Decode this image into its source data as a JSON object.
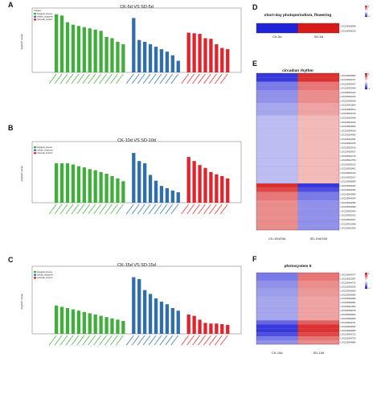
{
  "colors": {
    "biological_process": "#3fae3a",
    "cellular_component": "#2f6fad",
    "molecular_function": "#e0242c",
    "heat_low": "#2222d8",
    "heat_mid": "#ffffff",
    "heat_high": "#d81a1a"
  },
  "chart_data": [
    {
      "panel": "A",
      "type": "bar",
      "title": "CK-5d VS SD-5d",
      "ylabel": "-log10(P value)",
      "legend": {
        "title": "Category",
        "entries": [
          "biological_process",
          "cellular_component",
          "molecular_function"
        ],
        "placement": "top-left"
      },
      "ylim": [
        0,
        1
      ],
      "categories": [
        "",
        "",
        "",
        "",
        "",
        "",
        "",
        "",
        "",
        "",
        "",
        "",
        "",
        "",
        "",
        "",
        "",
        "",
        "",
        "",
        "",
        "",
        "",
        "",
        "",
        "",
        "",
        "",
        "",
        ""
      ],
      "values": [
        0.95,
        0.93,
        0.82,
        0.78,
        0.76,
        0.74,
        0.72,
        0.7,
        0.68,
        0.58,
        0.56,
        0.5,
        0.46,
        0.89,
        0.53,
        0.5,
        0.46,
        0.42,
        0.38,
        0.34,
        0.28,
        0.19,
        0.65,
        0.64,
        0.63,
        0.56,
        0.55,
        0.46,
        0.4,
        0.38
      ],
      "groups": [
        13,
        9,
        8
      ]
    },
    {
      "panel": "B",
      "type": "bar",
      "title": "CK-10d VS SD-10d",
      "ylabel": "-log10(P value)",
      "legend": {
        "title": "",
        "entries": [
          "biological_process",
          "cellular_component",
          "molecular_function"
        ],
        "placement": "top-left"
      },
      "ylim": [
        0,
        1
      ],
      "categories": [
        "",
        "",
        "",
        "",
        "",
        "",
        "",
        "",
        "",
        "",
        "",
        "",
        "",
        "",
        "",
        "",
        "",
        "",
        "",
        "",
        "",
        "",
        "",
        "",
        "",
        "",
        "",
        "",
        "",
        ""
      ],
      "values": [
        0.68,
        0.68,
        0.68,
        0.66,
        0.63,
        0.61,
        0.58,
        0.56,
        0.53,
        0.5,
        0.46,
        0.42,
        0.37,
        0.86,
        0.72,
        0.68,
        0.48,
        0.38,
        0.29,
        0.25,
        0.21,
        0.18,
        0.79,
        0.72,
        0.65,
        0.6,
        0.53,
        0.49,
        0.46,
        0.42
      ],
      "groups": [
        13,
        9,
        8
      ]
    },
    {
      "panel": "C",
      "type": "bar",
      "title": "CK-15d VS SD-15d",
      "ylabel": "-log10(P value)",
      "legend": {
        "title": "",
        "entries": [
          "biological_process",
          "cellular_component",
          "molecular_function"
        ],
        "placement": "top-left"
      },
      "ylim": [
        0,
        1
      ],
      "categories": [
        "",
        "",
        "",
        "",
        "",
        "",
        "",
        "",
        "",
        "",
        "",
        "",
        "",
        "",
        "",
        "",
        "",
        "",
        "",
        "",
        "",
        "",
        "",
        "",
        "",
        "",
        "",
        "",
        "",
        ""
      ],
      "values": [
        0.44,
        0.42,
        0.4,
        0.38,
        0.36,
        0.34,
        0.32,
        0.3,
        0.28,
        0.26,
        0.24,
        0.22,
        0.2,
        0.88,
        0.85,
        0.68,
        0.62,
        0.55,
        0.5,
        0.46,
        0.4,
        0.36,
        0.3,
        0.28,
        0.22,
        0.17,
        0.16,
        0.16,
        0.15,
        0.14
      ],
      "groups": [
        13,
        9,
        8
      ]
    },
    {
      "panel": "D",
      "type": "heatmap",
      "title": "short-day photoperiodism, flowering",
      "columns": [
        "CK-5d",
        "SD-5d"
      ],
      "rows": [
        "LOC108328098",
        "LOC108345019"
      ],
      "values": [
        [
          -1,
          1
        ],
        [
          -1,
          1
        ]
      ],
      "scale": [
        -1,
        1
      ]
    },
    {
      "panel": "E",
      "type": "heatmap",
      "title": "circadian rhythm",
      "columns": [
        "CK-10d/15d",
        "SD-10d/15d"
      ],
      "rows": [
        "LOC108320863",
        "LOC108332707",
        "LOC108329467",
        "LOC108332409",
        "LOC108332422",
        "LOC108332424",
        "LOC108330548",
        "LOC108341964",
        "LOC108318614",
        "LOC108332416",
        "LOC108323458",
        "LOC108344234",
        "LOC108318926",
        "LOC108344240",
        "LOC108324455",
        "LOC108321531",
        "LOC108332415",
        "LOC108332410",
        "LOC108318617",
        "LOC108341716",
        "LOC108321759",
        "LOC108332412",
        "LOC108325401",
        "LOC108332413",
        "LOC108332417",
        "LOC108328080",
        "LOC108339292",
        "LOC108344290",
        "LOC108343480",
        "LOC108344294",
        "LOC108344295",
        "LOC108343090",
        "LOC108332404",
        "LOC108332412",
        "LOC108332407",
        "LOC108331598",
        "LOC108319530"
      ],
      "values": [
        [
          -0.9,
          0.9
        ],
        [
          -0.9,
          0.9
        ],
        [
          -0.6,
          0.6
        ],
        [
          -0.6,
          0.6
        ],
        [
          -0.5,
          0.5
        ],
        [
          -0.5,
          0.5
        ],
        [
          -0.5,
          0.5
        ],
        [
          -0.4,
          0.4
        ],
        [
          -0.4,
          0.4
        ],
        [
          -0.4,
          0.4
        ],
        [
          -0.3,
          0.3
        ],
        [
          -0.3,
          0.3
        ],
        [
          -0.3,
          0.3
        ],
        [
          -0.3,
          0.3
        ],
        [
          -0.3,
          0.3
        ],
        [
          -0.3,
          0.3
        ],
        [
          -0.3,
          0.3
        ],
        [
          -0.3,
          0.3
        ],
        [
          -0.3,
          0.3
        ],
        [
          -0.3,
          0.3
        ],
        [
          -0.3,
          0.3
        ],
        [
          -0.3,
          0.3
        ],
        [
          -0.3,
          0.3
        ],
        [
          -0.3,
          0.3
        ],
        [
          -0.3,
          0.3
        ],
        [
          -0.3,
          0.3
        ],
        [
          0.9,
          -0.9
        ],
        [
          0.8,
          -0.8
        ],
        [
          0.6,
          -0.6
        ],
        [
          0.6,
          -0.6
        ],
        [
          0.5,
          -0.5
        ],
        [
          0.5,
          -0.5
        ],
        [
          0.5,
          -0.5
        ],
        [
          0.5,
          -0.5
        ],
        [
          0.5,
          -0.5
        ],
        [
          0.5,
          -0.5
        ],
        [
          0.5,
          -0.5
        ]
      ],
      "scale": [
        -1,
        1
      ]
    },
    {
      "panel": "F",
      "type": "heatmap",
      "title": "photosystem II",
      "columns": [
        "CK-15d",
        "SD-15d"
      ],
      "rows": [
        "LOC108343077",
        "LOC108322997",
        "LOC108344732",
        "LOC108330256",
        "LOC108340963",
        "LOC108336083",
        "LOC108334980",
        "LOC108340951",
        "LOC108327900",
        "LOC108339076",
        "LOC108340962",
        "LOC108340959",
        "LOC108343731",
        "LOC108345091",
        "LOC108340955",
        "LOC108343722",
        "LOC108343726",
        "LOC108344884"
      ],
      "values": [
        [
          -0.6,
          0.6
        ],
        [
          -0.6,
          0.6
        ],
        [
          -0.5,
          0.5
        ],
        [
          -0.5,
          0.5
        ],
        [
          -0.45,
          0.45
        ],
        [
          -0.45,
          0.45
        ],
        [
          -0.4,
          0.4
        ],
        [
          -0.4,
          0.4
        ],
        [
          -0.4,
          0.4
        ],
        [
          -0.4,
          0.4
        ],
        [
          -0.4,
          0.4
        ],
        [
          -0.4,
          0.4
        ],
        [
          -0.7,
          0.7
        ],
        [
          -0.9,
          0.9
        ],
        [
          -0.9,
          0.9
        ],
        [
          -0.8,
          0.8
        ],
        [
          -0.6,
          0.6
        ],
        [
          -0.5,
          0.5
        ]
      ],
      "scale": [
        -1,
        1
      ]
    }
  ]
}
